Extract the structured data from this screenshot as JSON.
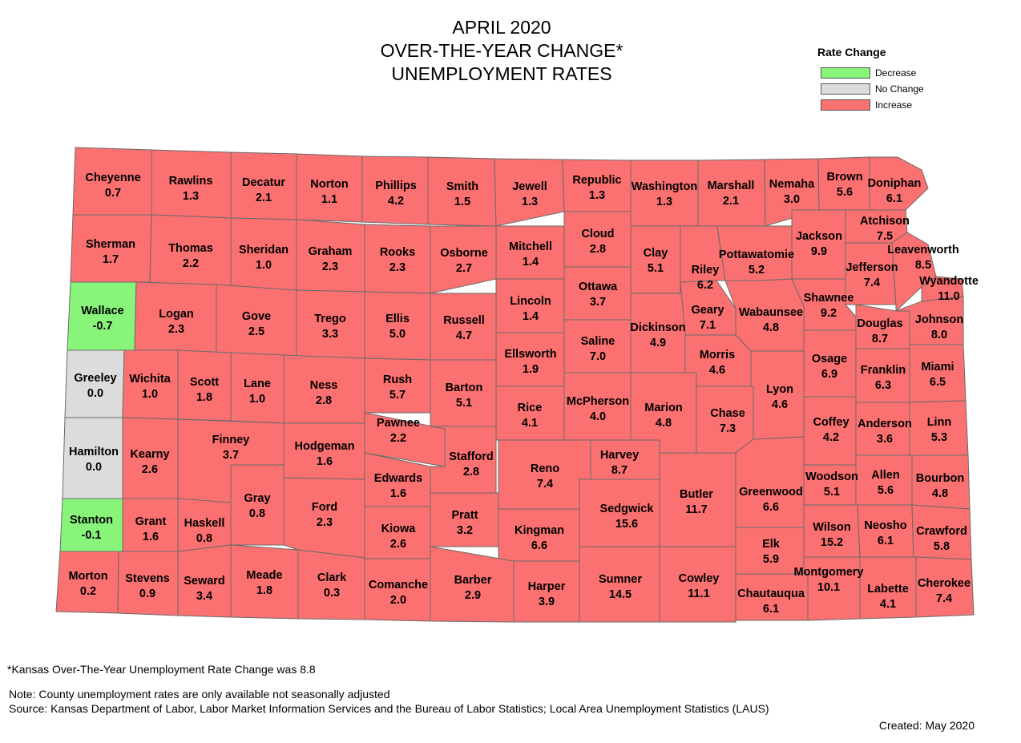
{
  "title": {
    "line1": "APRIL 2020",
    "line2": "OVER-THE-YEAR CHANGE*",
    "line3": "UNEMPLOYMENT RATES"
  },
  "legend": {
    "title": "Rate Change",
    "items": [
      {
        "label": "Decrease",
        "color": "#88f47a"
      },
      {
        "label": "No Change",
        "color": "#dcdcdc"
      },
      {
        "label": "Increase",
        "color": "#fb7070"
      }
    ]
  },
  "colors": {
    "decrease": "#88f47a",
    "no_change": "#dcdcdc",
    "increase": "#fb7070",
    "border": "#6b6b6b"
  },
  "counties": [
    {
      "name": "Cheyenne",
      "value": "0.7",
      "category": "increase"
    },
    {
      "name": "Rawlins",
      "value": "1.3",
      "category": "increase"
    },
    {
      "name": "Decatur",
      "value": "2.1",
      "category": "increase"
    },
    {
      "name": "Norton",
      "value": "1.1",
      "category": "increase"
    },
    {
      "name": "Phillips",
      "value": "4.2",
      "category": "increase"
    },
    {
      "name": "Smith",
      "value": "1.5",
      "category": "increase"
    },
    {
      "name": "Jewell",
      "value": "1.3",
      "category": "increase"
    },
    {
      "name": "Republic",
      "value": "1.3",
      "category": "increase"
    },
    {
      "name": "Washington",
      "value": "1.3",
      "category": "increase"
    },
    {
      "name": "Marshall",
      "value": "2.1",
      "category": "increase"
    },
    {
      "name": "Nemaha",
      "value": "3.0",
      "category": "increase"
    },
    {
      "name": "Brown",
      "value": "5.6",
      "category": "increase"
    },
    {
      "name": "Doniphan",
      "value": "6.1",
      "category": "increase"
    },
    {
      "name": "Sherman",
      "value": "1.7",
      "category": "increase"
    },
    {
      "name": "Thomas",
      "value": "2.2",
      "category": "increase"
    },
    {
      "name": "Sheridan",
      "value": "1.0",
      "category": "increase"
    },
    {
      "name": "Graham",
      "value": "2.3",
      "category": "increase"
    },
    {
      "name": "Rooks",
      "value": "2.3",
      "category": "increase"
    },
    {
      "name": "Osborne",
      "value": "2.7",
      "category": "increase"
    },
    {
      "name": "Mitchell",
      "value": "1.4",
      "category": "increase"
    },
    {
      "name": "Cloud",
      "value": "2.8",
      "category": "increase"
    },
    {
      "name": "Clay",
      "value": "5.1",
      "category": "increase"
    },
    {
      "name": "Riley",
      "value": "6.2",
      "category": "increase"
    },
    {
      "name": "Pottawatomie",
      "value": "5.2",
      "category": "increase"
    },
    {
      "name": "Jackson",
      "value": "9.9",
      "category": "increase"
    },
    {
      "name": "Atchison",
      "value": "7.5",
      "category": "increase"
    },
    {
      "name": "Jefferson",
      "value": "7.4",
      "category": "increase"
    },
    {
      "name": "Leavenworth",
      "value": "8.5",
      "category": "increase"
    },
    {
      "name": "Wyandotte",
      "value": "11.0",
      "category": "increase"
    },
    {
      "name": "Wallace",
      "value": "-0.7",
      "category": "decrease"
    },
    {
      "name": "Logan",
      "value": "2.3",
      "category": "increase"
    },
    {
      "name": "Gove",
      "value": "2.5",
      "category": "increase"
    },
    {
      "name": "Trego",
      "value": "3.3",
      "category": "increase"
    },
    {
      "name": "Ellis",
      "value": "5.0",
      "category": "increase"
    },
    {
      "name": "Russell",
      "value": "4.7",
      "category": "increase"
    },
    {
      "name": "Lincoln",
      "value": "1.4",
      "category": "increase"
    },
    {
      "name": "Ottawa",
      "value": "3.7",
      "category": "increase"
    },
    {
      "name": "Dickinson",
      "value": "4.9",
      "category": "increase"
    },
    {
      "name": "Geary",
      "value": "7.1",
      "category": "increase"
    },
    {
      "name": "Wabaunsee",
      "value": "4.8",
      "category": "increase"
    },
    {
      "name": "Shawnee",
      "value": "9.2",
      "category": "increase"
    },
    {
      "name": "Douglas",
      "value": "8.7",
      "category": "increase"
    },
    {
      "name": "Johnson",
      "value": "8.0",
      "category": "increase"
    },
    {
      "name": "Greeley",
      "value": "0.0",
      "category": "no_change"
    },
    {
      "name": "Wichita",
      "value": "1.0",
      "category": "increase"
    },
    {
      "name": "Scott",
      "value": "1.8",
      "category": "increase"
    },
    {
      "name": "Lane",
      "value": "1.0",
      "category": "increase"
    },
    {
      "name": "Ness",
      "value": "2.8",
      "category": "increase"
    },
    {
      "name": "Rush",
      "value": "5.7",
      "category": "increase"
    },
    {
      "name": "Barton",
      "value": "5.1",
      "category": "increase"
    },
    {
      "name": "Ellsworth",
      "value": "1.9",
      "category": "increase"
    },
    {
      "name": "Saline",
      "value": "7.0",
      "category": "increase"
    },
    {
      "name": "Morris",
      "value": "4.6",
      "category": "increase"
    },
    {
      "name": "Lyon",
      "value": "4.6",
      "category": "increase"
    },
    {
      "name": "Osage",
      "value": "6.9",
      "category": "increase"
    },
    {
      "name": "Franklin",
      "value": "6.3",
      "category": "increase"
    },
    {
      "name": "Miami",
      "value": "6.5",
      "category": "increase"
    },
    {
      "name": "Hamilton",
      "value": "0.0",
      "category": "no_change"
    },
    {
      "name": "Kearny",
      "value": "2.6",
      "category": "increase"
    },
    {
      "name": "Finney",
      "value": "3.7",
      "category": "increase"
    },
    {
      "name": "Hodgeman",
      "value": "1.6",
      "category": "increase"
    },
    {
      "name": "Pawnee",
      "value": "2.2",
      "category": "increase"
    },
    {
      "name": "Stafford",
      "value": "2.8",
      "category": "increase"
    },
    {
      "name": "Rice",
      "value": "4.1",
      "category": "increase"
    },
    {
      "name": "McPherson",
      "value": "4.0",
      "category": "increase"
    },
    {
      "name": "Marion",
      "value": "4.8",
      "category": "increase"
    },
    {
      "name": "Chase",
      "value": "7.3",
      "category": "increase"
    },
    {
      "name": "Coffey",
      "value": "4.2",
      "category": "increase"
    },
    {
      "name": "Anderson",
      "value": "3.6",
      "category": "increase"
    },
    {
      "name": "Linn",
      "value": "5.3",
      "category": "increase"
    },
    {
      "name": "Stanton",
      "value": "-0.1",
      "category": "decrease"
    },
    {
      "name": "Grant",
      "value": "1.6",
      "category": "increase"
    },
    {
      "name": "Haskell",
      "value": "0.8",
      "category": "increase"
    },
    {
      "name": "Gray",
      "value": "0.8",
      "category": "increase"
    },
    {
      "name": "Ford",
      "value": "2.3",
      "category": "increase"
    },
    {
      "name": "Edwards",
      "value": "1.6",
      "category": "increase"
    },
    {
      "name": "Kiowa",
      "value": "2.6",
      "category": "increase"
    },
    {
      "name": "Pratt",
      "value": "3.2",
      "category": "increase"
    },
    {
      "name": "Reno",
      "value": "7.4",
      "category": "increase"
    },
    {
      "name": "Harvey",
      "value": "8.7",
      "category": "increase"
    },
    {
      "name": "Sedgwick",
      "value": "15.6",
      "category": "increase"
    },
    {
      "name": "Butler",
      "value": "11.7",
      "category": "increase"
    },
    {
      "name": "Greenwood",
      "value": "6.6",
      "category": "increase"
    },
    {
      "name": "Woodson",
      "value": "5.1",
      "category": "increase"
    },
    {
      "name": "Allen",
      "value": "5.6",
      "category": "increase"
    },
    {
      "name": "Bourbon",
      "value": "4.8",
      "category": "increase"
    },
    {
      "name": "Kingman",
      "value": "6.6",
      "category": "increase"
    },
    {
      "name": "Wilson",
      "value": "15.2",
      "category": "increase"
    },
    {
      "name": "Neosho",
      "value": "6.1",
      "category": "increase"
    },
    {
      "name": "Crawford",
      "value": "5.8",
      "category": "increase"
    },
    {
      "name": "Elk",
      "value": "5.9",
      "category": "increase"
    },
    {
      "name": "Morton",
      "value": "0.2",
      "category": "increase"
    },
    {
      "name": "Stevens",
      "value": "0.9",
      "category": "increase"
    },
    {
      "name": "Seward",
      "value": "3.4",
      "category": "increase"
    },
    {
      "name": "Meade",
      "value": "1.8",
      "category": "increase"
    },
    {
      "name": "Clark",
      "value": "0.3",
      "category": "increase"
    },
    {
      "name": "Comanche",
      "value": "2.0",
      "category": "increase"
    },
    {
      "name": "Barber",
      "value": "2.9",
      "category": "increase"
    },
    {
      "name": "Harper",
      "value": "3.9",
      "category": "increase"
    },
    {
      "name": "Sumner",
      "value": "14.5",
      "category": "increase"
    },
    {
      "name": "Cowley",
      "value": "11.1",
      "category": "increase"
    },
    {
      "name": "Chautauqua",
      "value": "6.1",
      "category": "increase"
    },
    {
      "name": "Montgomery",
      "value": "10.1",
      "category": "increase"
    },
    {
      "name": "Labette",
      "value": "4.1",
      "category": "increase"
    },
    {
      "name": "Cherokee",
      "value": "7.4",
      "category": "increase"
    }
  ],
  "footnote": "*Kansas Over-The-Year Unemployment Rate Change was 8.8",
  "note": "Note: County unemployment rates are only available not seasonally adjusted",
  "source": "Source: Kansas Department of Labor, Labor Market Information Services and the Bureau of Labor Statistics; Local Area Unemployment Statistics (LAUS)",
  "created": "Created:  May 2020"
}
